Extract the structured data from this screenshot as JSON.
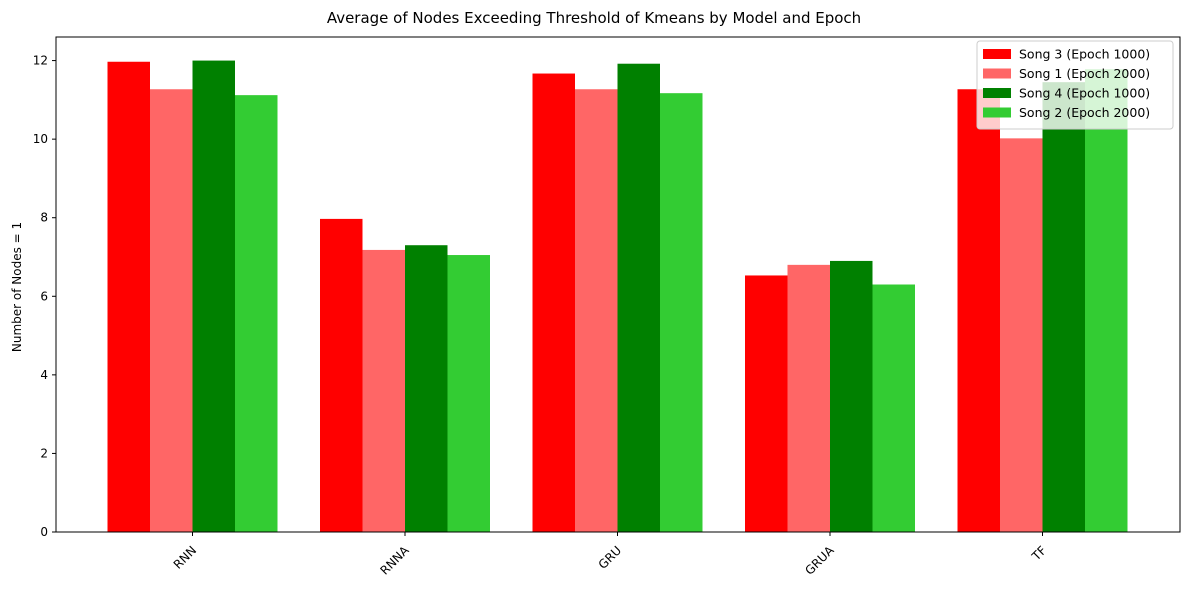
{
  "chart_data": {
    "type": "bar",
    "title": "Average of Nodes Exceeding Threshold of Kmeans by Model and Epoch",
    "xlabel": "",
    "ylabel": "Number of Nodes = 1",
    "categories": [
      "RNN",
      "RNNA",
      "GRU",
      "GRUA",
      "TF"
    ],
    "ylim": [
      0,
      12.6
    ],
    "yticks": [
      0,
      2,
      4,
      6,
      8,
      10,
      12
    ],
    "ytick_labels": [
      "0",
      "2",
      "4",
      "6",
      "8",
      "10",
      "12"
    ],
    "grid": false,
    "legend_position": "top-right",
    "series": [
      {
        "name": "Song 3 (Epoch 1000)",
        "color": "#ff0000",
        "values": [
          11.97,
          7.97,
          11.67,
          6.53,
          11.27
        ]
      },
      {
        "name": "Song 1 (Epoch 2000)",
        "color": "#ff6666",
        "values": [
          11.27,
          7.18,
          11.27,
          6.8,
          10.02
        ]
      },
      {
        "name": "Song 4 (Epoch 1000)",
        "color": "#008000",
        "values": [
          12.0,
          7.3,
          11.92,
          6.9,
          11.45
        ]
      },
      {
        "name": "Song 2 (Epoch 2000)",
        "color": "#33cc33",
        "values": [
          11.12,
          7.05,
          11.17,
          6.3,
          11.78
        ]
      }
    ]
  }
}
